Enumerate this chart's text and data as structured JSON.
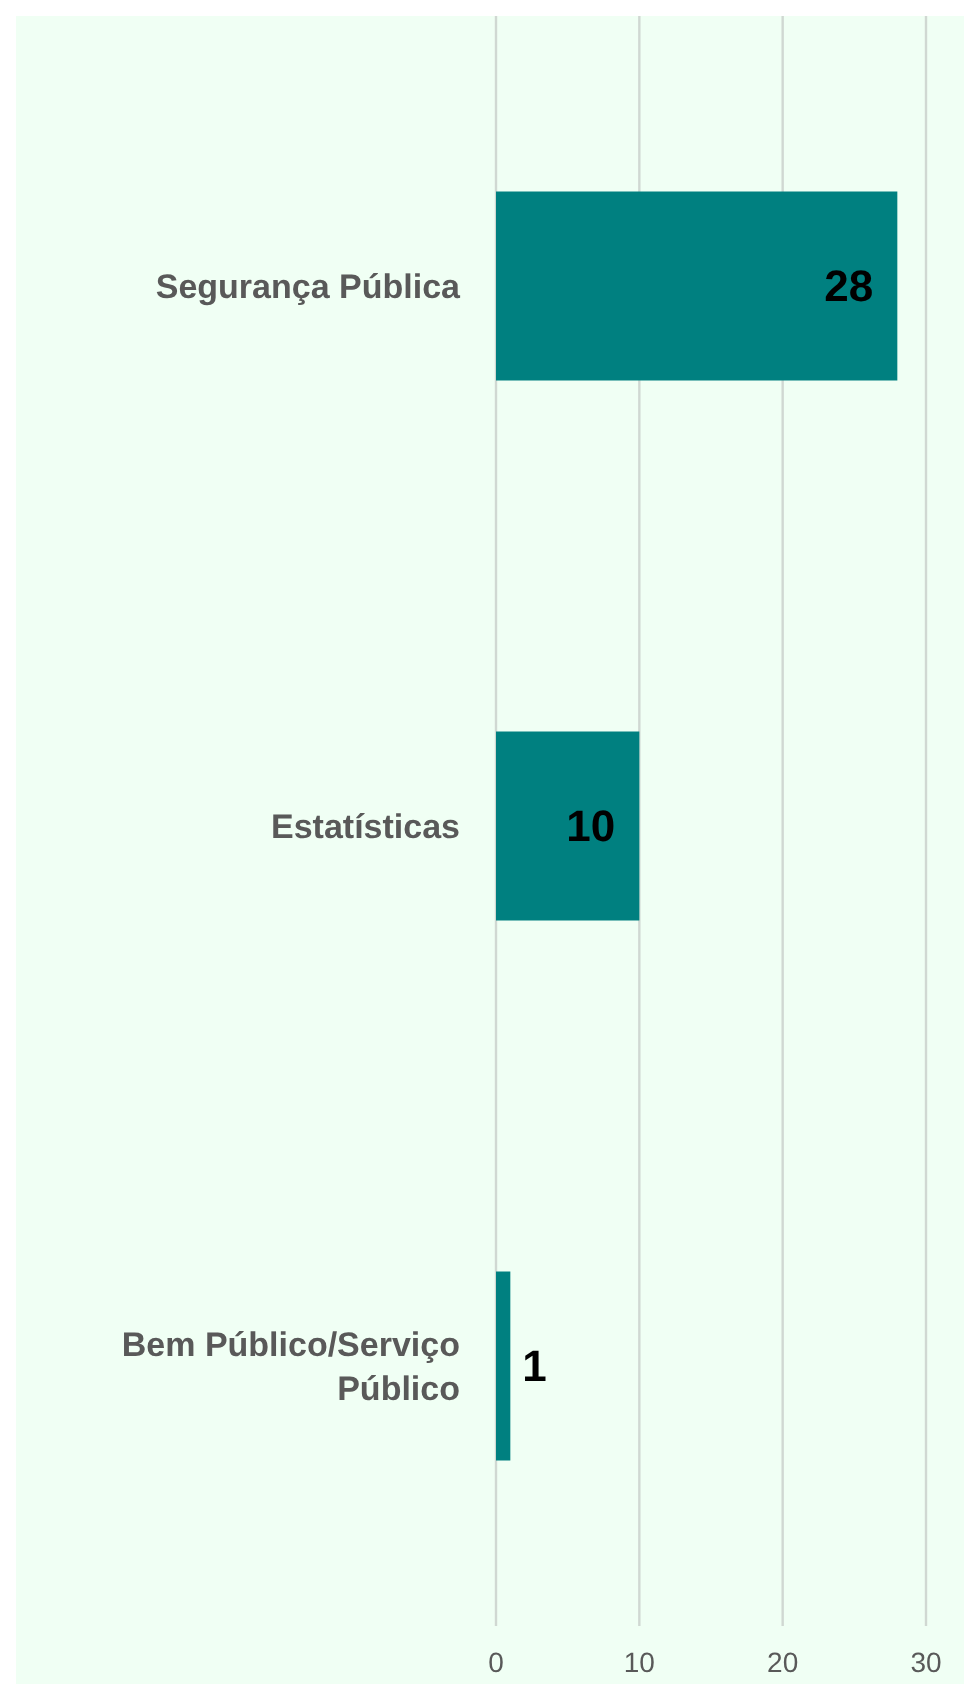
{
  "chart_data": {
    "type": "bar",
    "orientation": "horizontal",
    "categories": [
      "Segurança Pública",
      "Estatísticas",
      "Bem Público/Serviço Público"
    ],
    "values": [
      28,
      10,
      1
    ],
    "color": "#008080",
    "xlim": [
      0,
      30
    ],
    "xticks": [
      0,
      10,
      20,
      30
    ],
    "grid": "x",
    "data_labels": true
  }
}
